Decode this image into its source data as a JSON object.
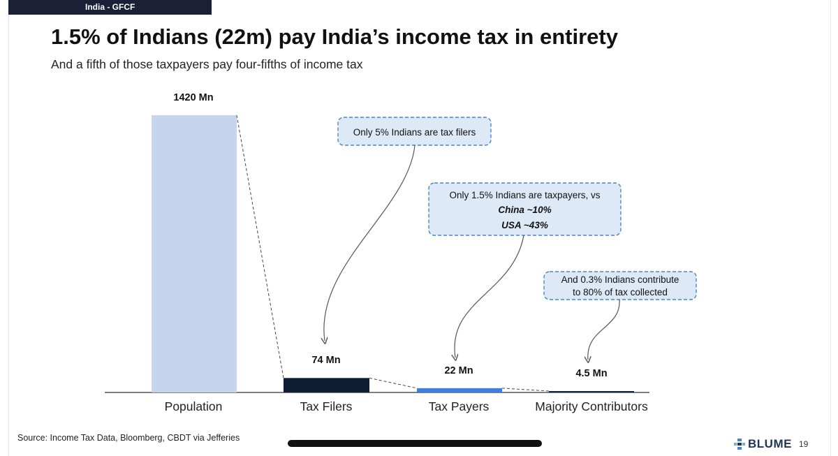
{
  "section_tag": "India - GFCF",
  "title": "1.5% of Indians (22m) pay India’s income tax in entirety",
  "subtitle": "And a fifth of those taxpayers pay four-fifths of income tax",
  "source": "Source: Income Tax Data, Bloomberg,  CBDT via Jefferies",
  "brand": {
    "name": "BLUME",
    "page": "19",
    "icon": "blume-logo-icon"
  },
  "colors": {
    "population": "#c5d5ee",
    "tax_filers": "#0d1b33",
    "tax_payers": "#3d7fe0",
    "contributors": "#15253d",
    "callout_bg": "#dde9f7",
    "callout_border": "#4a86c5"
  },
  "chart_data": {
    "type": "bar",
    "categories": [
      "Population",
      "Tax Filers",
      "Tax Payers",
      "Majority Contributors"
    ],
    "values": [
      1420,
      74,
      22,
      4.5
    ],
    "data_labels": [
      "1420 Mn",
      "74 Mn",
      "22 Mn",
      "4.5 Mn"
    ],
    "unit": "Mn",
    "ylim": [
      0,
      1420
    ],
    "grid": false,
    "legend": "none",
    "annotations": [
      {
        "target": "Tax Filers",
        "lines": [
          "Only 5% Indians are tax filers"
        ]
      },
      {
        "target": "Tax Payers",
        "lines": [
          "Only 1.5% Indians  are taxpayers, vs",
          "China ~10%",
          "USA ~43%"
        ]
      },
      {
        "target": "Majority Contributors",
        "lines": [
          "And 0.3% Indians contribute",
          "to 80% of tax collected"
        ]
      }
    ]
  }
}
